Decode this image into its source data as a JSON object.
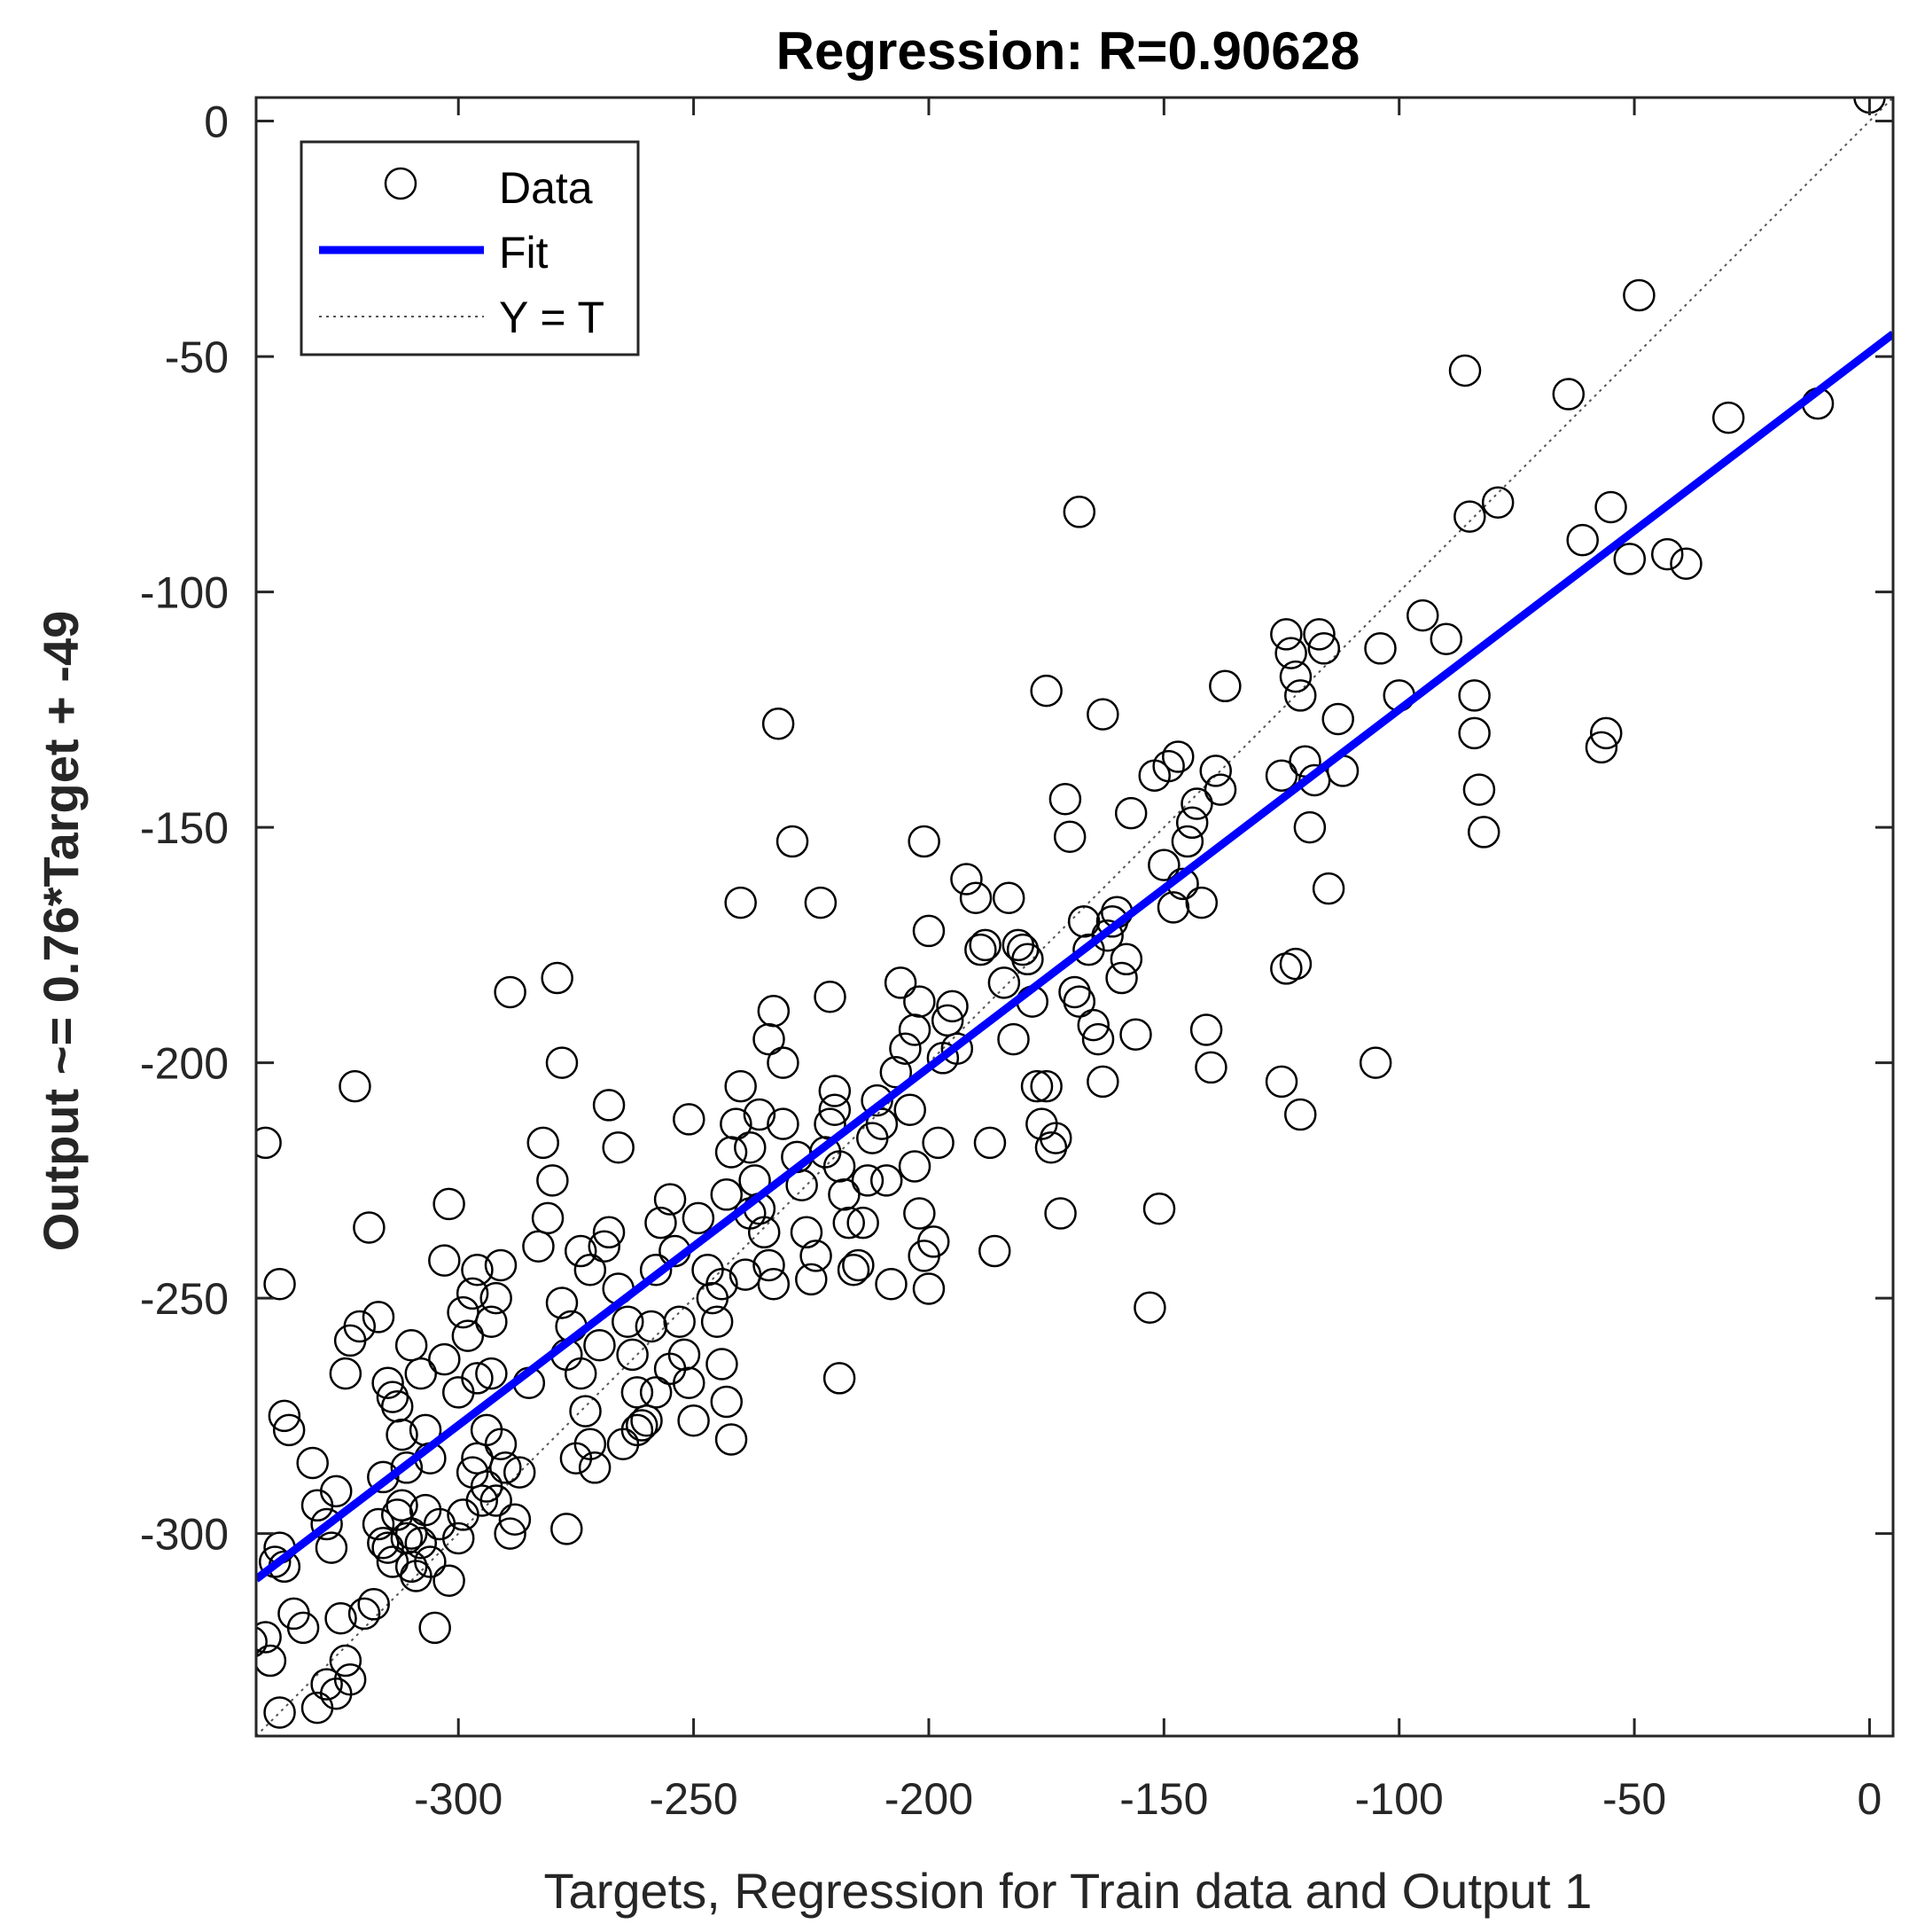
{
  "chart_data": {
    "type": "scatter",
    "title": "Regression: R=0.90628",
    "xlabel": "Targets, Regression for Train data and Output 1",
    "ylabel": "Output ~= 0.76*Target + -49",
    "xlim": [
      -343,
      5
    ],
    "ylim": [
      -343,
      5
    ],
    "xticks": [
      -300,
      -250,
      -200,
      -150,
      -100,
      -50,
      0
    ],
    "yticks": [
      0,
      -50,
      -100,
      -150,
      -200,
      -250,
      -300
    ],
    "xtick_labels": [
      "-300",
      "-250",
      "-200",
      "-150",
      "-100",
      "-50",
      "0"
    ],
    "ytick_labels": [
      "0",
      "-50",
      "-100",
      "-150",
      "-200",
      "-250",
      "-300"
    ],
    "grid": false,
    "legend": {
      "position": "top-left",
      "entries": [
        {
          "label": "Data",
          "kind": "circle"
        },
        {
          "label": "Fit",
          "kind": "line"
        },
        {
          "label": "Y = T",
          "kind": "dotted"
        }
      ]
    },
    "fit": {
      "slope": 0.76,
      "intercept": -49,
      "color": "#0000ff"
    },
    "identity_color": "#555555",
    "marker_color": "#000000",
    "points": [
      [
        -344,
        -323
      ],
      [
        -341,
        -322
      ],
      [
        -340,
        -327
      ],
      [
        -338,
        -338
      ],
      [
        -339,
        -306
      ],
      [
        -338,
        -303
      ],
      [
        -337,
        -307
      ],
      [
        -335,
        -317
      ],
      [
        -333,
        -320
      ],
      [
        -330,
        -337
      ],
      [
        -328,
        -332
      ],
      [
        -326,
        -334
      ],
      [
        -325,
        -318
      ],
      [
        -324,
        -327
      ],
      [
        -323,
        -331
      ],
      [
        -320,
        -317
      ],
      [
        -318,
        -315
      ],
      [
        -341,
        -217
      ],
      [
        -338,
        -247
      ],
      [
        -337,
        -275
      ],
      [
        -336,
        -278
      ],
      [
        -331,
        -285
      ],
      [
        -330,
        -294
      ],
      [
        -328,
        -298
      ],
      [
        -327,
        -303
      ],
      [
        -326,
        -291
      ],
      [
        -324,
        -266
      ],
      [
        -323,
        -259
      ],
      [
        -321,
        -256
      ],
      [
        -322,
        -205
      ],
      [
        -319,
        -235
      ],
      [
        -317,
        -298
      ],
      [
        -316,
        -302
      ],
      [
        -315,
        -303
      ],
      [
        -314,
        -306
      ],
      [
        -313,
        -296
      ],
      [
        -312,
        -294
      ],
      [
        -311,
        -301
      ],
      [
        -310,
        -307
      ],
      [
        -309,
        -309
      ],
      [
        -310,
        -300
      ],
      [
        -308,
        -302
      ],
      [
        -307,
        -295
      ],
      [
        -306,
        -306
      ],
      [
        -305,
        -320
      ],
      [
        -311,
        -286
      ],
      [
        -312,
        -279
      ],
      [
        -313,
        -273
      ],
      [
        -314,
        -271
      ],
      [
        -315,
        -268
      ],
      [
        -316,
        -288
      ],
      [
        -317,
        -254
      ],
      [
        -310,
        -260
      ],
      [
        -308,
        -266
      ],
      [
        -307,
        -278
      ],
      [
        -303,
        -242
      ],
      [
        -306,
        -284
      ],
      [
        -304,
        -298
      ],
      [
        -302,
        -310
      ],
      [
        -300,
        -301
      ],
      [
        -299,
        -296
      ],
      [
        -297,
        -287
      ],
      [
        -296,
        -284
      ],
      [
        -295,
        -293
      ],
      [
        -294,
        -290
      ],
      [
        -292,
        -293
      ],
      [
        -291,
        -281
      ],
      [
        -293,
        -266
      ],
      [
        -294,
        -278
      ],
      [
        -296,
        -267
      ],
      [
        -298,
        -258
      ],
      [
        -299,
        -253
      ],
      [
        -297,
        -249
      ],
      [
        -296,
        -244
      ],
      [
        -293,
        -255
      ],
      [
        -292,
        -250
      ],
      [
        -291,
        -243
      ],
      [
        -290,
        -286
      ],
      [
        -289,
        -300
      ],
      [
        -288,
        -297
      ],
      [
        -287,
        -287
      ],
      [
        -289,
        -185
      ],
      [
        -300,
        -270
      ],
      [
        -302,
        -230
      ],
      [
        -303,
        -263
      ],
      [
        -285,
        -268
      ],
      [
        -283,
        -239
      ],
      [
        -281,
        -233
      ],
      [
        -282,
        -217
      ],
      [
        -280,
        -225
      ],
      [
        -278,
        -251
      ],
      [
        -277,
        -262
      ],
      [
        -276,
        -256
      ],
      [
        -278,
        -200
      ],
      [
        -279,
        -182
      ],
      [
        -274,
        -266
      ],
      [
        -273,
        -274
      ],
      [
        -272,
        -281
      ],
      [
        -271,
        -286
      ],
      [
        -270,
        -260
      ],
      [
        -272,
        -244
      ],
      [
        -274,
        -240
      ],
      [
        -275,
        -284
      ],
      [
        -277,
        -299
      ],
      [
        -268,
        -236
      ],
      [
        -266,
        -248
      ],
      [
        -264,
        -255
      ],
      [
        -263,
        -262
      ],
      [
        -262,
        -270
      ],
      [
        -261,
        -277
      ],
      [
        -260,
        -276
      ],
      [
        -262,
        -278
      ],
      [
        -265,
        -281
      ],
      [
        -269,
        -239
      ],
      [
        -268,
        -209
      ],
      [
        -266,
        -218
      ],
      [
        -259,
        -256
      ],
      [
        -258,
        -244
      ],
      [
        -257,
        -234
      ],
      [
        -255,
        -229
      ],
      [
        -254,
        -240
      ],
      [
        -253,
        -255
      ],
      [
        -252,
        -262
      ],
      [
        -251,
        -268
      ],
      [
        -250,
        -276
      ],
      [
        -255,
        -265
      ],
      [
        -258,
        -270
      ],
      [
        -251,
        -212
      ],
      [
        -249,
        -233
      ],
      [
        -247,
        -244
      ],
      [
        -246,
        -250
      ],
      [
        -245,
        -255
      ],
      [
        -244,
        -264
      ],
      [
        -243,
        -272
      ],
      [
        -242,
        -280
      ],
      [
        -244,
        -247
      ],
      [
        -243,
        -228
      ],
      [
        -242,
        -219
      ],
      [
        -241,
        -213
      ],
      [
        -240,
        -205
      ],
      [
        -238,
        -218
      ],
      [
        -237,
        -225
      ],
      [
        -236,
        -231
      ],
      [
        -235,
        -236
      ],
      [
        -234,
        -243
      ],
      [
        -233,
        -247
      ],
      [
        -238,
        -232
      ],
      [
        -239,
        -245
      ],
      [
        -236,
        -211
      ],
      [
        -234,
        -195
      ],
      [
        -233,
        -189
      ],
      [
        -231,
        -200
      ],
      [
        -232,
        -128
      ],
      [
        -229,
        -153
      ],
      [
        -231,
        -213
      ],
      [
        -228,
        -220
      ],
      [
        -227,
        -226
      ],
      [
        -226,
        -236
      ],
      [
        -225,
        -246
      ],
      [
        -224,
        -241
      ],
      [
        -222,
        -219
      ],
      [
        -221,
        -213
      ],
      [
        -220,
        -210
      ],
      [
        -219,
        -222
      ],
      [
        -218,
        -228
      ],
      [
        -217,
        -234
      ],
      [
        -216,
        -244
      ],
      [
        -215,
        -243
      ],
      [
        -214,
        -234
      ],
      [
        -213,
        -225
      ],
      [
        -212,
        -216
      ],
      [
        -211,
        -208
      ],
      [
        -210,
        -213
      ],
      [
        -209,
        -225
      ],
      [
        -208,
        -247
      ],
      [
        -220,
        -206
      ],
      [
        -223,
        -166
      ],
      [
        -221,
        -186
      ],
      [
        -219,
        -267
      ],
      [
        -240,
        -166
      ],
      [
        -207,
        -202
      ],
      [
        -206,
        -183
      ],
      [
        -205,
        -197
      ],
      [
        -204,
        -210
      ],
      [
        -203,
        -222
      ],
      [
        -202,
        -232
      ],
      [
        -201,
        -241
      ],
      [
        -200,
        -248
      ],
      [
        -199,
        -238
      ],
      [
        -198,
        -217
      ],
      [
        -197,
        -199
      ],
      [
        -196,
        -191
      ],
      [
        -195,
        -188
      ],
      [
        -194,
        -197
      ],
      [
        -200,
        -172
      ],
      [
        -201,
        -153
      ],
      [
        -202,
        -187
      ],
      [
        -203,
        -193
      ],
      [
        -192,
        -161
      ],
      [
        -190,
        -165
      ],
      [
        -189,
        -176
      ],
      [
        -188,
        -175
      ],
      [
        -187,
        -217
      ],
      [
        -186,
        -240
      ],
      [
        -184,
        -183
      ],
      [
        -183,
        -165
      ],
      [
        -182,
        -195
      ],
      [
        -181,
        -175
      ],
      [
        -180,
        -176
      ],
      [
        -179,
        -178
      ],
      [
        -178,
        -187
      ],
      [
        -177,
        -205
      ],
      [
        -176,
        -213
      ],
      [
        -175,
        -205
      ],
      [
        -174,
        -218
      ],
      [
        -173,
        -216
      ],
      [
        -172,
        -232
      ],
      [
        -170,
        -152
      ],
      [
        -169,
        -185
      ],
      [
        -168,
        -187
      ],
      [
        -167,
        -170
      ],
      [
        -166,
        -176
      ],
      [
        -165,
        -192
      ],
      [
        -164,
        -195
      ],
      [
        -163,
        -204
      ],
      [
        -162,
        -173
      ],
      [
        -161,
        -170
      ],
      [
        -160,
        -168
      ],
      [
        -159,
        -182
      ],
      [
        -158,
        -178
      ],
      [
        -157,
        -147
      ],
      [
        -156,
        -194
      ],
      [
        -168,
        -83
      ],
      [
        -175,
        -121
      ],
      [
        -171,
        -144
      ],
      [
        -163,
        -126
      ],
      [
        -152,
        -139
      ],
      [
        -150,
        -158
      ],
      [
        -149,
        -137
      ],
      [
        -148,
        -167
      ],
      [
        -147,
        -135
      ],
      [
        -146,
        -162
      ],
      [
        -145,
        -153
      ],
      [
        -144,
        -149
      ],
      [
        -143,
        -145
      ],
      [
        -142,
        -166
      ],
      [
        -141,
        -193
      ],
      [
        -140,
        -201
      ],
      [
        -139,
        -138
      ],
      [
        -138,
        -142
      ],
      [
        -137,
        -120
      ],
      [
        -153,
        -252
      ],
      [
        -151,
        -231
      ],
      [
        -125,
        -139
      ],
      [
        -124,
        -109
      ],
      [
        -123,
        -113
      ],
      [
        -122,
        -118
      ],
      [
        -121,
        -122
      ],
      [
        -120,
        -136
      ],
      [
        -119,
        -150
      ],
      [
        -118,
        -140
      ],
      [
        -117,
        -109
      ],
      [
        -116,
        -112
      ],
      [
        -115,
        -163
      ],
      [
        -113,
        -127
      ],
      [
        -112,
        -138
      ],
      [
        -125,
        -204
      ],
      [
        -121,
        -211
      ],
      [
        -124,
        -180
      ],
      [
        -122,
        -179
      ],
      [
        -105,
        -200
      ],
      [
        -104,
        -112
      ],
      [
        -100,
        -122
      ],
      [
        -95,
        -105
      ],
      [
        -90,
        -110
      ],
      [
        -86,
        -53
      ],
      [
        -85,
        -84
      ],
      [
        -84,
        -122
      ],
      [
        -84,
        -130
      ],
      [
        -83,
        -142
      ],
      [
        -82,
        -151
      ],
      [
        -79,
        -81
      ],
      [
        -64,
        -58
      ],
      [
        -61,
        -89
      ],
      [
        -57,
        -133
      ],
      [
        -56,
        -130
      ],
      [
        -55,
        -82
      ],
      [
        -51,
        -93
      ],
      [
        -49,
        -37
      ],
      [
        -43,
        -92
      ],
      [
        -39,
        -94
      ],
      [
        -30,
        -63
      ],
      [
        -11,
        -60
      ],
      [
        0,
        5
      ]
    ]
  }
}
